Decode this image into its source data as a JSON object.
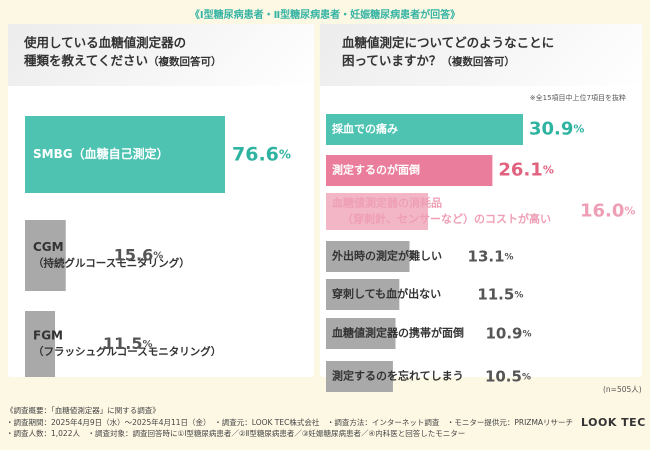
{
  "banner": "《Ⅰ型糖尿病患者・Ⅱ型糖尿病患者・妊娠糖尿病患者が回答》",
  "left_question": {
    "line1": "使用している血糖値測定器の",
    "line2": "種類を教えてください",
    "suffix": "（複数回答可）"
  },
  "right_question": {
    "line1": "血糖値測定についてどのようなことに",
    "line2": "困っていますか？",
    "suffix": "（複数回答可）"
  },
  "note": "※全15項目中上位7項目を抜粋",
  "n_label": "(n=505人)",
  "brand": "LOOK TEC",
  "footer": {
    "line1": "《調査概要：「血糖値測定器」に関する調査》",
    "line2": "・調査期間：2025年4月9日（水）〜2025年4月11日（金）　・調査元：LOOK TEC株式会社　・調査方法：インターネット調査　・モニター提供元：PRIZMAリサーチ",
    "line3": "・調査人数：1,022人　・調査対象：調査回答時に①Ⅰ型糖尿病患者／②Ⅱ型糖尿病患者／③妊娠糖尿病患者／④内科医と回答したモニター"
  },
  "colors": {
    "teal": "#4ec3b2",
    "pink": "#ea7d9b",
    "light_pink": "#f2b6c7",
    "gray": "#a9a9a9",
    "teal_text": "#2fb3a1",
    "pink_text": "#e0627f",
    "light_pink_text": "#ef9fb5",
    "gray_text": "#555555"
  },
  "chart_data": [
    {
      "type": "bar",
      "orientation": "horizontal",
      "unit": "%",
      "categories": [
        [
          "SMBG（血糖自己測定）"
        ],
        [
          "CGM",
          "（持続グルコースモニタリング）"
        ],
        [
          "FGM",
          "（フラッシュグルコースモニタリング）"
        ]
      ],
      "values": [
        76.6,
        15.6,
        11.5
      ],
      "value_labels": [
        "76.6",
        "15.6",
        "11.5"
      ],
      "xlim": [
        0,
        100
      ]
    },
    {
      "type": "bar",
      "orientation": "horizontal",
      "unit": "%",
      "categories": [
        [
          "採血での痛み"
        ],
        [
          "測定するのが面倒"
        ],
        [
          "血糖値測定器の消耗品",
          "（穿刺針、センサーなど）のコストが高い"
        ],
        [
          "外出時の測定が難しい"
        ],
        [
          "穿刺しても血が出ない"
        ],
        [
          "血糖値測定器の携帯が面倒"
        ],
        [
          "測定するのを忘れてしまう"
        ]
      ],
      "values": [
        30.9,
        26.1,
        16.0,
        13.1,
        11.5,
        10.9,
        10.5
      ],
      "value_labels": [
        "30.9",
        "26.1",
        "16.0",
        "13.1",
        "11.5",
        "10.9",
        "10.5"
      ],
      "xlim": [
        0,
        100
      ]
    }
  ]
}
